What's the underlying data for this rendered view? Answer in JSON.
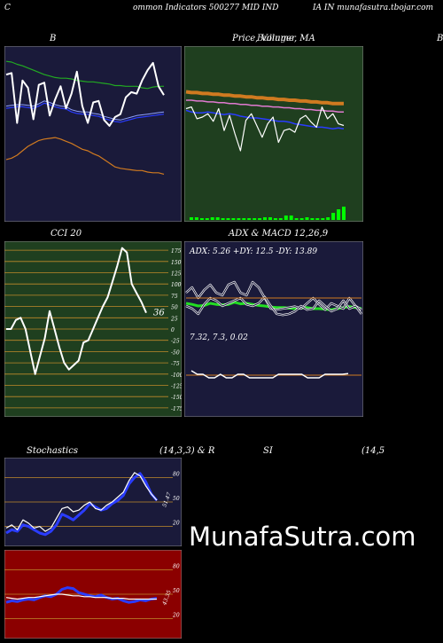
{
  "header": {
    "letter": "C",
    "text": "ommon  Indicators 500277 MID IND",
    "right": "IA IN  munafasutra.tbojar.com"
  },
  "titles": {
    "b": "B",
    "price": "Price,  Volume,  MA",
    "price_overlay": "Bulinger",
    "edge": "B",
    "cci": "CCI 20",
    "adx": "ADX  & MACD 12,26,9",
    "stoch": "Stochastics",
    "stoch_params": "(14,3,3) & R",
    "si": "SI",
    "rsi_params": "(14,5"
  },
  "watermark": "MunafaSutra.com",
  "colors": {
    "navy_bg": "#1a1a3a",
    "green_bg": "#1f3f1f",
    "red_bg": "#8b0000",
    "blue": "#1e3cff",
    "orange": "#e08a2a",
    "green_line": "#22cc22"
  },
  "chart_data": [
    {
      "type": "line",
      "title": "B",
      "series": [
        {
          "color": "green",
          "values": [
            94,
            93,
            90,
            88,
            85,
            82,
            79,
            76,
            74,
            72,
            71,
            71,
            70,
            68,
            67,
            66,
            66,
            65,
            64,
            63,
            61,
            61,
            60,
            60,
            60,
            58,
            57,
            59,
            60,
            60
          ]
        },
        {
          "color": "blue",
          "values": [
            30,
            31,
            32,
            32,
            31,
            30,
            33,
            37,
            35,
            32,
            30,
            29,
            25,
            23,
            22,
            22,
            20,
            19,
            16,
            14,
            12,
            11,
            13,
            15,
            17,
            18,
            19,
            20,
            21,
            22
          ]
        },
        {
          "color": "white",
          "values": [
            76,
            78,
            10,
            68,
            58,
            15,
            62,
            65,
            20,
            42,
            60,
            30,
            50,
            80,
            33,
            10,
            38,
            40,
            14,
            6,
            18,
            22,
            45,
            52,
            50,
            68,
            82,
            92,
            60,
            48
          ]
        },
        {
          "color": "orange",
          "values": [
            -40,
            -38,
            -34,
            -28,
            -22,
            -18,
            -14,
            -12,
            -11,
            -10,
            -12,
            -15,
            -18,
            -22,
            -26,
            -28,
            -32,
            -35,
            -40,
            -45,
            -50,
            -52,
            -53,
            -54,
            -55,
            -55,
            -57,
            -58,
            -58,
            -60
          ]
        }
      ]
    },
    {
      "type": "line",
      "title": "Price,  Volume,  MA",
      "series": [
        {
          "color": "orange",
          "values": [
            130,
            129,
            129,
            128,
            128,
            127,
            127,
            126,
            126,
            125,
            125,
            124,
            124,
            123,
            123,
            122,
            122,
            121,
            121,
            120,
            120,
            119,
            119,
            118,
            118,
            117,
            117,
            116,
            116,
            116
          ]
        },
        {
          "color": "pink",
          "values": [
            120,
            120,
            119,
            119,
            118,
            118,
            117,
            117,
            116,
            116,
            115,
            115,
            114,
            114,
            113,
            113,
            112,
            112,
            111,
            111,
            110,
            110,
            109,
            109,
            108,
            108,
            107,
            107,
            106,
            106
          ]
        },
        {
          "color": "blue",
          "values": [
            108,
            106,
            105,
            105,
            106,
            105,
            104,
            103,
            104,
            103,
            101,
            100,
            99,
            99,
            98,
            97,
            96,
            95,
            95,
            94,
            92,
            91,
            90,
            89,
            88,
            88,
            87,
            86,
            87,
            86
          ]
        },
        {
          "color": "white",
          "values": [
            110,
            112,
            98,
            100,
            104,
            95,
            110,
            84,
            102,
            80,
            60,
            96,
            104,
            90,
            76,
            92,
            100,
            70,
            84,
            86,
            82,
            98,
            102,
            94,
            88,
            112,
            98,
            104,
            92,
            90
          ]
        }
      ],
      "volume": [
        3,
        3,
        2,
        2,
        3,
        3,
        2,
        2,
        2,
        2,
        2,
        2,
        2,
        2,
        3,
        3,
        2,
        2,
        5,
        5,
        2,
        2,
        3,
        2,
        2,
        2,
        3,
        8,
        12,
        15
      ]
    },
    {
      "type": "line",
      "title": "CCI 20",
      "yticks": [
        175,
        150,
        125,
        100,
        75,
        50,
        25,
        0,
        -25,
        -50,
        -75,
        -100,
        -125,
        -150,
        -175
      ],
      "ylim": [
        -187,
        187
      ],
      "label": "36",
      "values": [
        0,
        0,
        20,
        25,
        0,
        -50,
        -100,
        -60,
        -20,
        40,
        0,
        -40,
        -75,
        -90,
        -80,
        -70,
        -30,
        -25,
        0,
        25,
        50,
        70,
        105,
        140,
        180,
        170,
        100,
        80,
        60,
        36
      ]
    },
    {
      "type": "line",
      "title": "ADX  & MACD 12,26,9",
      "adx_label": "ADX: 5.26  +DY: 12.5 -DY: 13.89",
      "macd_label": "7.32,  7.3,  0.02",
      "series": [
        {
          "color": "green",
          "values": [
            50,
            48,
            45,
            46,
            50,
            48,
            47,
            48,
            52,
            49,
            50,
            48,
            46,
            45,
            43,
            42,
            42,
            41,
            40,
            41,
            42,
            40,
            40,
            39,
            38,
            40,
            42,
            44,
            42,
            40
          ]
        },
        {
          "color": "white",
          "values": [
            70,
            80,
            60,
            75,
            85,
            70,
            65,
            85,
            90,
            70,
            65,
            90,
            80,
            60,
            40,
            38,
            40,
            42,
            44,
            40,
            50,
            60,
            48,
            38,
            50,
            45,
            40,
            60,
            45,
            38
          ]
        },
        {
          "color": "white",
          "values": [
            45,
            40,
            30,
            48,
            60,
            55,
            45,
            50,
            55,
            60,
            48,
            45,
            50,
            62,
            45,
            30,
            28,
            30,
            35,
            45,
            38,
            40,
            55,
            45,
            35,
            40,
            55,
            40,
            45,
            30
          ]
        }
      ],
      "macd": [
        7.4,
        7.3,
        7.3,
        7.2,
        7.2,
        7.3,
        7.2,
        7.2,
        7.3,
        7.3,
        7.2,
        7.2,
        7.2,
        7.2,
        7.2,
        7.3,
        7.3,
        7.3,
        7.3,
        7.3,
        7.2,
        7.2,
        7.2,
        7.3,
        7.3,
        7.3,
        7.3,
        7.32
      ]
    },
    {
      "type": "line",
      "title": "Stochastics",
      "yticks": [
        80,
        50,
        20
      ],
      "label": "51.47",
      "series": [
        {
          "color": "blue",
          "values": [
            12,
            16,
            14,
            22,
            20,
            16,
            12,
            10,
            14,
            22,
            35,
            32,
            28,
            34,
            40,
            48,
            44,
            40,
            42,
            48,
            52,
            58,
            72,
            80,
            85,
            75,
            60,
            52
          ]
        },
        {
          "color": "white",
          "values": [
            18,
            22,
            16,
            28,
            24,
            18,
            20,
            14,
            18,
            30,
            42,
            44,
            38,
            40,
            46,
            50,
            42,
            40,
            46,
            50,
            56,
            62,
            76,
            86,
            82,
            70,
            60,
            52
          ]
        }
      ]
    },
    {
      "type": "line",
      "title": "SI",
      "yticks": [
        80,
        50,
        20
      ],
      "label": "43.35",
      "series": [
        {
          "color": "blue",
          "values": [
            40,
            42,
            41,
            43,
            44,
            43,
            46,
            48,
            47,
            50,
            56,
            58,
            57,
            52,
            50,
            48,
            47,
            49,
            46,
            44,
            45,
            42,
            40,
            41,
            43,
            42,
            44,
            45
          ]
        },
        {
          "color": "white",
          "values": [
            46,
            45,
            44,
            45,
            46,
            46,
            47,
            48,
            49,
            50,
            50,
            49,
            48,
            48,
            47,
            47,
            46,
            46,
            46,
            45,
            45,
            45,
            44,
            44,
            44,
            44,
            44,
            44
          ]
        }
      ]
    }
  ]
}
